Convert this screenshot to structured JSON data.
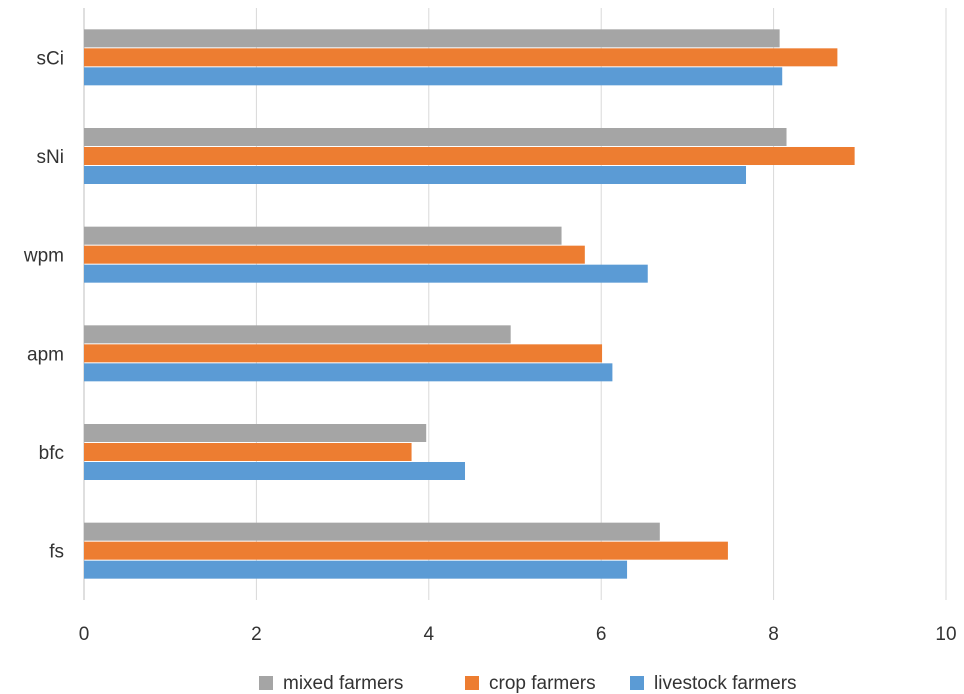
{
  "chart_data": {
    "type": "bar",
    "orientation": "horizontal",
    "categories": [
      "fs",
      "bfc",
      "apm",
      "wpm",
      "sNi",
      "sCi"
    ],
    "series": [
      {
        "name": "livestock farmers",
        "color": "#5B9BD5",
        "values": [
          6.3,
          4.42,
          6.13,
          6.54,
          7.68,
          8.1
        ]
      },
      {
        "name": "crop farmers",
        "color": "#ED7D31",
        "values": [
          7.47,
          3.8,
          6.01,
          5.81,
          8.94,
          8.74
        ]
      },
      {
        "name": "mixed farmers",
        "color": "#A5A5A5",
        "values": [
          6.68,
          3.97,
          4.95,
          5.54,
          8.15,
          8.07
        ]
      }
    ],
    "xlim": [
      0,
      10
    ],
    "xticks": [
      "0",
      "2",
      "4",
      "6",
      "8",
      "10"
    ],
    "grid": "vertical",
    "legend_position": "bottom",
    "legend_order": [
      "mixed farmers",
      "crop farmers",
      "livestock farmers"
    ]
  }
}
